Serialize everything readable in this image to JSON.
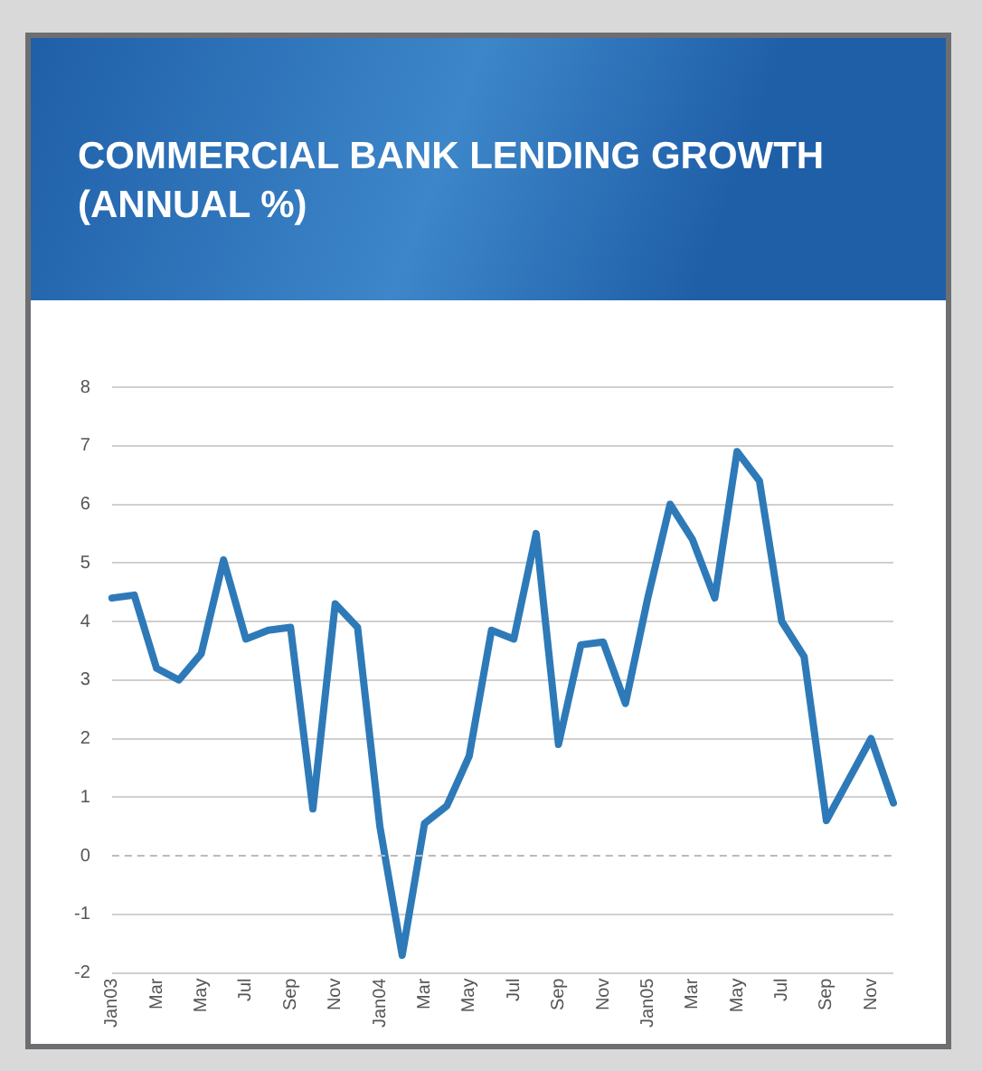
{
  "chart_data": {
    "type": "line",
    "title": "COMMERCIAL BANK LENDING GROWTH (ANNUAL %)",
    "categories": [
      "Jan03",
      null,
      "Mar",
      null,
      "May",
      null,
      "Jul",
      null,
      "Sep",
      null,
      "Nov",
      null,
      "Jan04",
      null,
      "Mar",
      null,
      "May",
      null,
      "Jul",
      null,
      "Sep",
      null,
      "Nov",
      null,
      "Jan05",
      null,
      "Mar",
      null,
      "May",
      null,
      "Jul",
      null,
      "Sep",
      null,
      "Nov",
      null
    ],
    "series": [
      {
        "color": "#2e7ab8",
        "values": [
          4.4,
          4.45,
          3.2,
          3.0,
          3.45,
          5.05,
          3.7,
          3.85,
          3.9,
          0.8,
          4.3,
          3.9,
          0.5,
          -1.7,
          0.55,
          0.85,
          1.7,
          3.85,
          3.7,
          5.5,
          1.9,
          3.6,
          3.65,
          2.6,
          4.4,
          6.0,
          5.4,
          4.4,
          6.9,
          6.4,
          4.0,
          3.4,
          0.6,
          1.3,
          2.0,
          0.9
        ]
      }
    ],
    "ylim": [
      -2,
      8
    ],
    "yticks": [
      -2,
      -1,
      0,
      1,
      2,
      3,
      4,
      5,
      6,
      7,
      8
    ],
    "ref_lines": [
      {
        "axis": "y",
        "value": 0,
        "line_style": "dashed",
        "color": "#bbbbbb"
      }
    ],
    "grid": "y",
    "legend": false,
    "marker": "none",
    "line_style": "solid"
  }
}
